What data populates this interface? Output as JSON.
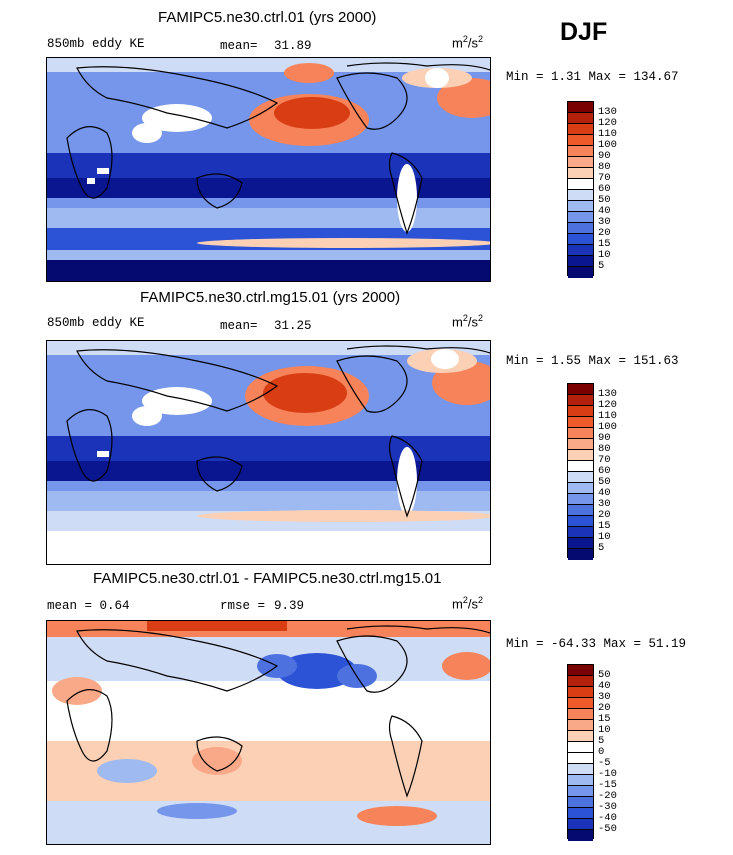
{
  "season": "DJF",
  "units": {
    "base": "m",
    "exp": "2",
    "sep": "/s",
    "exp2": "2"
  },
  "panels": [
    {
      "title": "FAMIPC5.ne30.ctrl.01 (yrs 2000)",
      "left_label": "850mb eddy KE",
      "stat_label": "mean=",
      "stat_value": "31.89",
      "minmax": "Min =   1.31 Max = 134.67"
    },
    {
      "title": "FAMIPC5.ne30.ctrl.mg15.01 (yrs 2000)",
      "left_label": "850mb eddy KE",
      "stat_label": "mean=",
      "stat_value": "31.25",
      "minmax": "Min =   1.55 Max = 151.63"
    },
    {
      "title": "FAMIPC5.ne30.ctrl.01 - FAMIPC5.ne30.ctrl.mg15.01",
      "left_label": "mean =   0.64",
      "stat_label": "rmse =",
      "stat_value": "9.39",
      "minmax": "Min = -64.33 Max =  51.19"
    }
  ],
  "colorbars": {
    "field": {
      "labels": [
        "130",
        "120",
        "110",
        "100",
        "90",
        "80",
        "70",
        "60",
        "50",
        "40",
        "30",
        "20",
        "15",
        "10",
        "5"
      ],
      "colors": [
        "#7a0000",
        "#b3200c",
        "#d83d14",
        "#ee5a2a",
        "#f6835a",
        "#f9a987",
        "#fcd0b5",
        "#ffffff",
        "#cfdcf6",
        "#9fbaf0",
        "#7596ea",
        "#4d72e0",
        "#2c52d6",
        "#1b33b8",
        "#0a1590",
        "#050a70"
      ]
    },
    "diff": {
      "labels": [
        "50",
        "40",
        "30",
        "20",
        "15",
        "10",
        "5",
        "0",
        "-5",
        "-10",
        "-15",
        "-20",
        "-30",
        "-40",
        "-50"
      ],
      "colors": [
        "#7a0000",
        "#b3200c",
        "#d83d14",
        "#ee5a2a",
        "#f6835a",
        "#f9a987",
        "#fcd0b5",
        "#ffffff",
        "#ffffff",
        "#cfdcf6",
        "#9fbaf0",
        "#7596ea",
        "#4d72e0",
        "#2c52d6",
        "#1b33b8",
        "#050a70"
      ]
    }
  }
}
